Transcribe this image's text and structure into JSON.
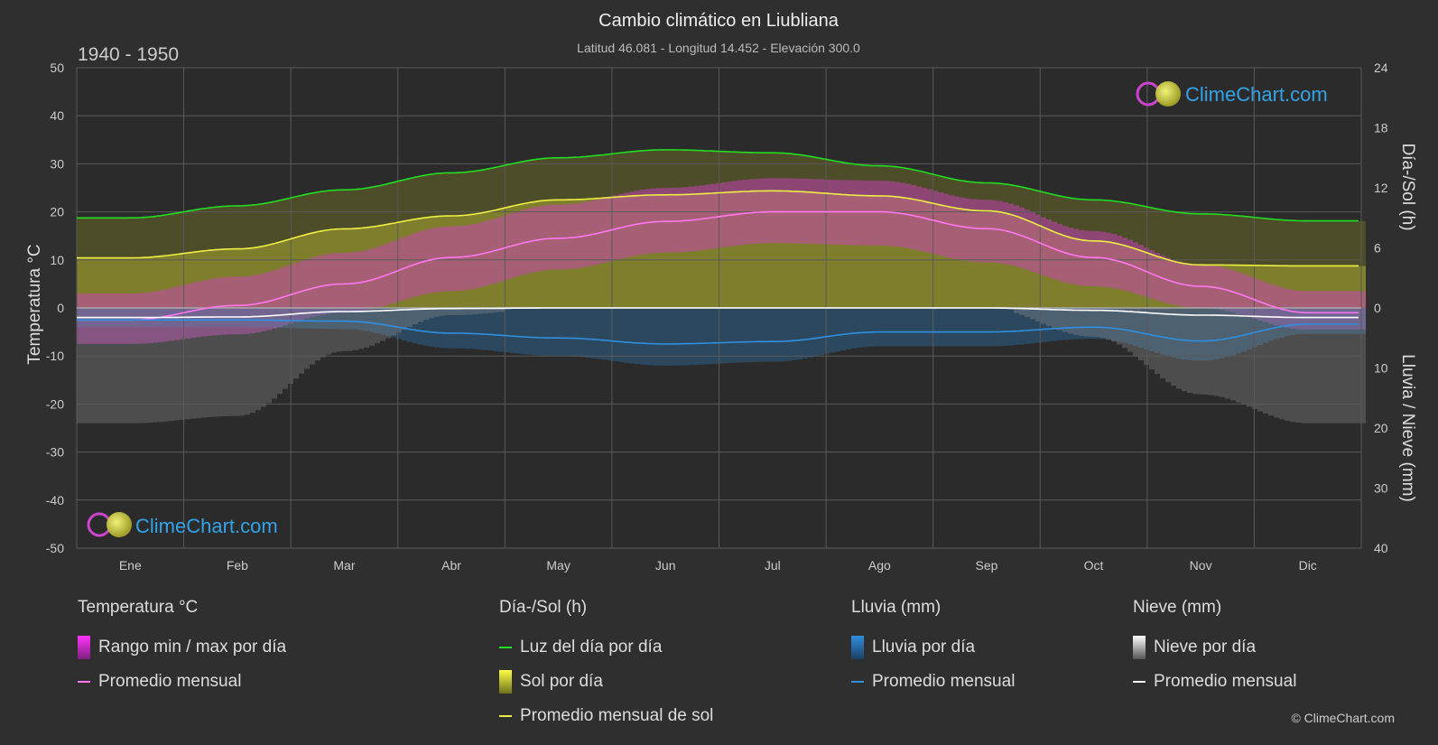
{
  "header": {
    "title": "Cambio climático en Liubliana",
    "subtitle": "Latitud 46.081 - Longitud 14.452 - Elevación 300.0",
    "period": "1940 - 1950"
  },
  "brand": {
    "name": "ClimeChart.com",
    "copyright": "© ClimeChart.com"
  },
  "colors": {
    "background": "#2f2f2f",
    "temp_range": "#d040c0",
    "temp_avg": "#ff77ee",
    "daylight": "#22dd22",
    "sunshine": "#a8a830",
    "sun_avg": "#eeee44",
    "rain": "#2a7fc0",
    "rain_avg": "#2f8fe0",
    "snow": "#9a9a9a",
    "snow_avg": "#ffffff",
    "brand_text": "#33a3e8"
  },
  "chart_data": {
    "type": "line",
    "months": [
      "Ene",
      "Feb",
      "Mar",
      "Abr",
      "May",
      "Jun",
      "Jul",
      "Ago",
      "Sep",
      "Oct",
      "Nov",
      "Dic"
    ],
    "axes": {
      "left": {
        "label": "Temperatura °C",
        "min": -50,
        "max": 50,
        "ticks": [
          50,
          40,
          30,
          20,
          10,
          0,
          -10,
          -20,
          -30,
          -40,
          -50
        ]
      },
      "right_top": {
        "label": "Día-/Sol (h)",
        "min": 0,
        "max": 24,
        "ticks": [
          24,
          18,
          12,
          6,
          0
        ]
      },
      "right_bottom": {
        "label": "Lluvia / Nieve (mm)",
        "min": 0,
        "max": 40,
        "ticks": [
          10,
          20,
          30,
          40
        ]
      }
    },
    "grid": true,
    "series": {
      "daylight_hours": [
        9.0,
        10.2,
        11.8,
        13.5,
        15.0,
        15.8,
        15.5,
        14.2,
        12.5,
        10.8,
        9.4,
        8.7
      ],
      "sunshine_hours": [
        5.0,
        5.9,
        7.9,
        9.2,
        10.8,
        11.3,
        11.7,
        11.2,
        9.7,
        6.7,
        4.3,
        4.2
      ],
      "temp_avg_c": [
        -2.5,
        0.5,
        5.0,
        10.5,
        14.5,
        18.0,
        20.0,
        20.0,
        16.5,
        10.5,
        4.5,
        -1.0
      ],
      "temp_min_c": [
        -7.5,
        -5.5,
        -1.0,
        3.5,
        8.0,
        11.5,
        13.5,
        13.0,
        9.5,
        4.5,
        0.0,
        -4.5
      ],
      "temp_max_c": [
        3.0,
        6.5,
        11.5,
        17.0,
        21.5,
        25.0,
        27.0,
        26.5,
        22.5,
        16.0,
        9.0,
        3.5
      ],
      "rain_avg_mm": [
        2.0,
        2.0,
        2.2,
        4.2,
        5.0,
        6.0,
        5.6,
        4.0,
        4.0,
        3.2,
        5.5,
        2.7
      ],
      "snow_avg_mm": [
        1.6,
        1.5,
        0.6,
        0.1,
        0.0,
        0.0,
        0.0,
        0.0,
        0.0,
        0.4,
        1.2,
        1.6
      ]
    }
  },
  "legend": [
    {
      "title": "Temperatura °C",
      "items": [
        {
          "label": "Rango min / max por día",
          "kind": "box",
          "color_key": "temp_range"
        },
        {
          "label": "Promedio mensual",
          "kind": "line",
          "color_key": "temp_avg"
        }
      ]
    },
    {
      "title": "Día-/Sol (h)",
      "items": [
        {
          "label": "Luz del día por día",
          "kind": "line",
          "color_key": "daylight"
        },
        {
          "label": "Sol por día",
          "kind": "box",
          "color_key": "sun_avg"
        },
        {
          "label": "Promedio mensual de sol",
          "kind": "line",
          "color_key": "sun_avg"
        }
      ]
    },
    {
      "title": "Lluvia (mm)",
      "items": [
        {
          "label": "Lluvia por día",
          "kind": "box",
          "color_key": "rain"
        },
        {
          "label": "Promedio mensual",
          "kind": "line",
          "color_key": "rain_avg"
        }
      ]
    },
    {
      "title": "Nieve (mm)",
      "items": [
        {
          "label": "Nieve por día",
          "kind": "box",
          "color_key": "snow_avg"
        },
        {
          "label": "Promedio mensual",
          "kind": "line",
          "color_key": "snow_avg"
        }
      ]
    }
  ]
}
